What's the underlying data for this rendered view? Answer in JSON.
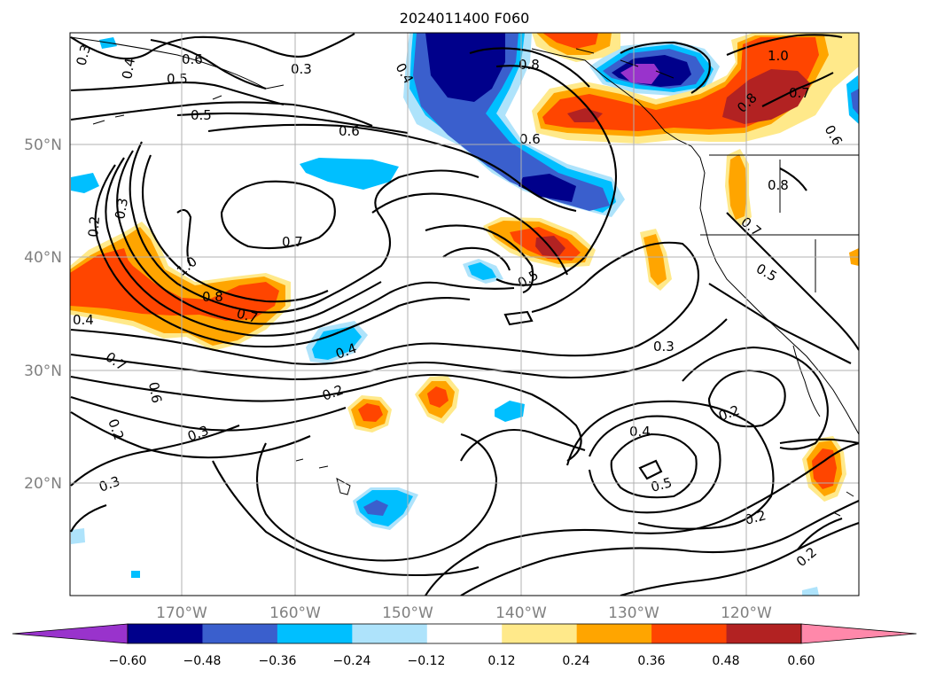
{
  "title": "2024011400 F060",
  "lat_labels": [
    "50°N",
    "40°N",
    "30°N",
    "20°N"
  ],
  "lon_labels": [
    "170°W",
    "160°W",
    "150°W",
    "140°W",
    "130°W",
    "120°W"
  ],
  "colorbar": {
    "ticks": [
      "−0.60",
      "−0.48",
      "−0.36",
      "−0.24",
      "−0.12",
      "0.12",
      "0.24",
      "0.36",
      "0.48",
      "0.60"
    ],
    "colors": [
      "#9933cc",
      "#00008b",
      "#3a5fcd",
      "#00bfff",
      "#aee3fb",
      "#ffffff",
      "#ffe98a",
      "#ffa500",
      "#ff4500",
      "#b22222",
      "#ff88aa"
    ]
  },
  "contour_labels": [
    "0.3",
    "0.4",
    "0.6",
    "0.5",
    "0.3",
    "0.5",
    "0.4",
    "0.8",
    "1.0",
    "0.7",
    "0.6",
    "0.8",
    "0.6",
    "0.6",
    "0.7",
    "0.2",
    "0.3",
    "1.0",
    "0.8",
    "0.7",
    "0.8",
    "0.5",
    "0.5",
    "0.7",
    "0.4",
    "0.4",
    "0.7",
    "0.6",
    "0.2",
    "0.2",
    "0.3",
    "0.3",
    "0.3",
    "0.4",
    "0.5",
    "0.2",
    "0.2",
    "0.2"
  ],
  "colors": {
    "purple": "#9933cc",
    "navy": "#00008b",
    "blue": "#3a5fcd",
    "sky": "#00bfff",
    "lightblue": "#aee3fb",
    "yellow": "#ffe98a",
    "orange": "#ffa500",
    "redorange": "#ff4500",
    "firebrick": "#b22222",
    "pink": "#ff88aa",
    "grid": "#b0b0b0",
    "axis_label": "#808080"
  }
}
